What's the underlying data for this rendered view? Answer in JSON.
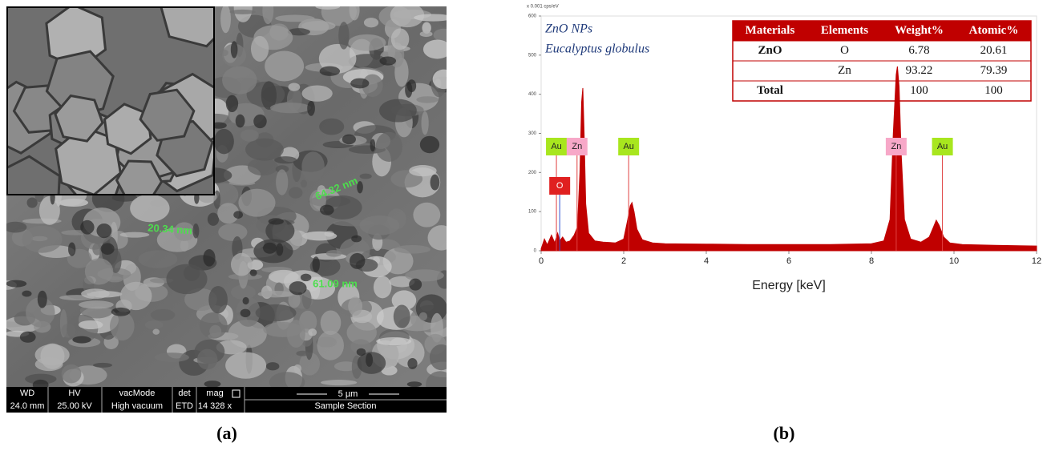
{
  "panel_a": {
    "label": "(a)",
    "measurements": [
      "20.34 nm",
      "64.32 nm",
      "61.09 nm"
    ],
    "info_bar": {
      "headers": [
        "WD",
        "HV",
        "vacMode",
        "det",
        "mag"
      ],
      "values": [
        "24.0 mm",
        "25.00 kV",
        "High vacuum",
        "ETD",
        "14 328 x"
      ],
      "scale": "5 µm",
      "section": "Sample Section"
    }
  },
  "panel_b": {
    "label": "(b)"
  },
  "chart_data": {
    "type": "line",
    "x_label": "Energy [keV]",
    "y_unit": "x 0.001 cps/eV",
    "annotations": [
      "ZnO NPs",
      "Eucalyptus globulus"
    ],
    "xlim": [
      0,
      12
    ],
    "xticks": [
      0,
      2,
      4,
      6,
      8,
      10,
      12
    ],
    "ylim": [
      0,
      600
    ],
    "yticks": [
      0,
      100,
      200,
      300,
      400,
      500,
      600
    ],
    "color": "#c00000",
    "x": [
      0,
      0.08,
      0.15,
      0.25,
      0.33,
      0.4,
      0.45,
      0.52,
      0.6,
      0.7,
      0.8,
      0.88,
      0.94,
      0.98,
      1.01,
      1.04,
      1.08,
      1.15,
      1.3,
      1.5,
      1.8,
      2.0,
      2.1,
      2.16,
      2.2,
      2.25,
      2.32,
      2.45,
      2.7,
      3,
      4,
      5,
      6,
      7,
      8,
      8.3,
      8.45,
      8.53,
      8.6,
      8.63,
      8.67,
      8.72,
      8.8,
      8.95,
      9.2,
      9.4,
      9.5,
      9.57,
      9.64,
      9.75,
      9.9,
      10.2,
      11,
      12
    ],
    "values": [
      5,
      30,
      15,
      40,
      20,
      45,
      25,
      35,
      22,
      25,
      40,
      60,
      200,
      380,
      416,
      300,
      120,
      45,
      25,
      22,
      20,
      30,
      80,
      115,
      123,
      100,
      55,
      28,
      20,
      18,
      17,
      16,
      16,
      16,
      18,
      25,
      80,
      300,
      450,
      471,
      420,
      250,
      80,
      30,
      22,
      35,
      60,
      78,
      65,
      35,
      20,
      16,
      14,
      12
    ],
    "peaks": [
      {
        "label": "Au",
        "x": 0.37
      },
      {
        "label": "Zn",
        "x": 0.87
      },
      {
        "label": "Au",
        "x": 2.12
      },
      {
        "label": "O",
        "x": 0.45
      },
      {
        "label": "Zn",
        "x": 8.6
      },
      {
        "label": "Au",
        "x": 9.72
      }
    ],
    "table": {
      "headers": [
        "Materials",
        "Elements",
        "Weight%",
        "Atomic%"
      ],
      "rows": [
        [
          "ZnO",
          "O",
          6.78,
          20.61
        ],
        [
          null,
          "Zn",
          93.22,
          79.39
        ],
        [
          "Total",
          null,
          100,
          100
        ]
      ]
    }
  }
}
